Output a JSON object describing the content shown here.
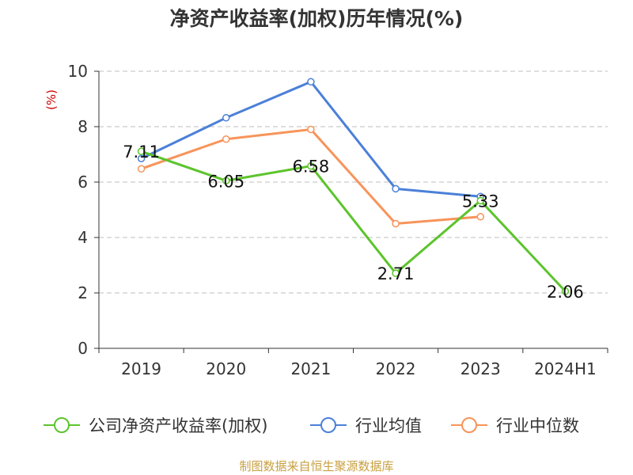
{
  "chart_data": {
    "type": "line",
    "title": "净资产收益率(加权)历年情况(%)",
    "ylabel": "(%)",
    "ylim": [
      0,
      10
    ],
    "yticks": [
      0,
      2,
      4,
      6,
      8,
      10
    ],
    "categories": [
      "2019",
      "2020",
      "2021",
      "2022",
      "2023",
      "2024H1"
    ],
    "grid": true,
    "legend_position": "bottom",
    "series": [
      {
        "name": "公司净资产收益率(加权)",
        "color": "#5cc42c",
        "values": [
          7.11,
          6.05,
          6.58,
          2.71,
          5.33,
          2.06
        ],
        "labels_shown": true
      },
      {
        "name": "行业均值",
        "color": "#4b80d8",
        "values": [
          6.85,
          8.32,
          9.62,
          5.76,
          5.48,
          null
        ],
        "labels_shown": false
      },
      {
        "name": "行业中位数",
        "color": "#f7945a",
        "values": [
          6.48,
          7.55,
          7.9,
          4.5,
          4.75,
          null
        ],
        "labels_shown": false
      }
    ],
    "data_labels": [
      "7.11",
      "6.05",
      "6.58",
      "2.71",
      "5.33",
      "2.06"
    ],
    "source": "制图数据来自恒生聚源数据库"
  }
}
